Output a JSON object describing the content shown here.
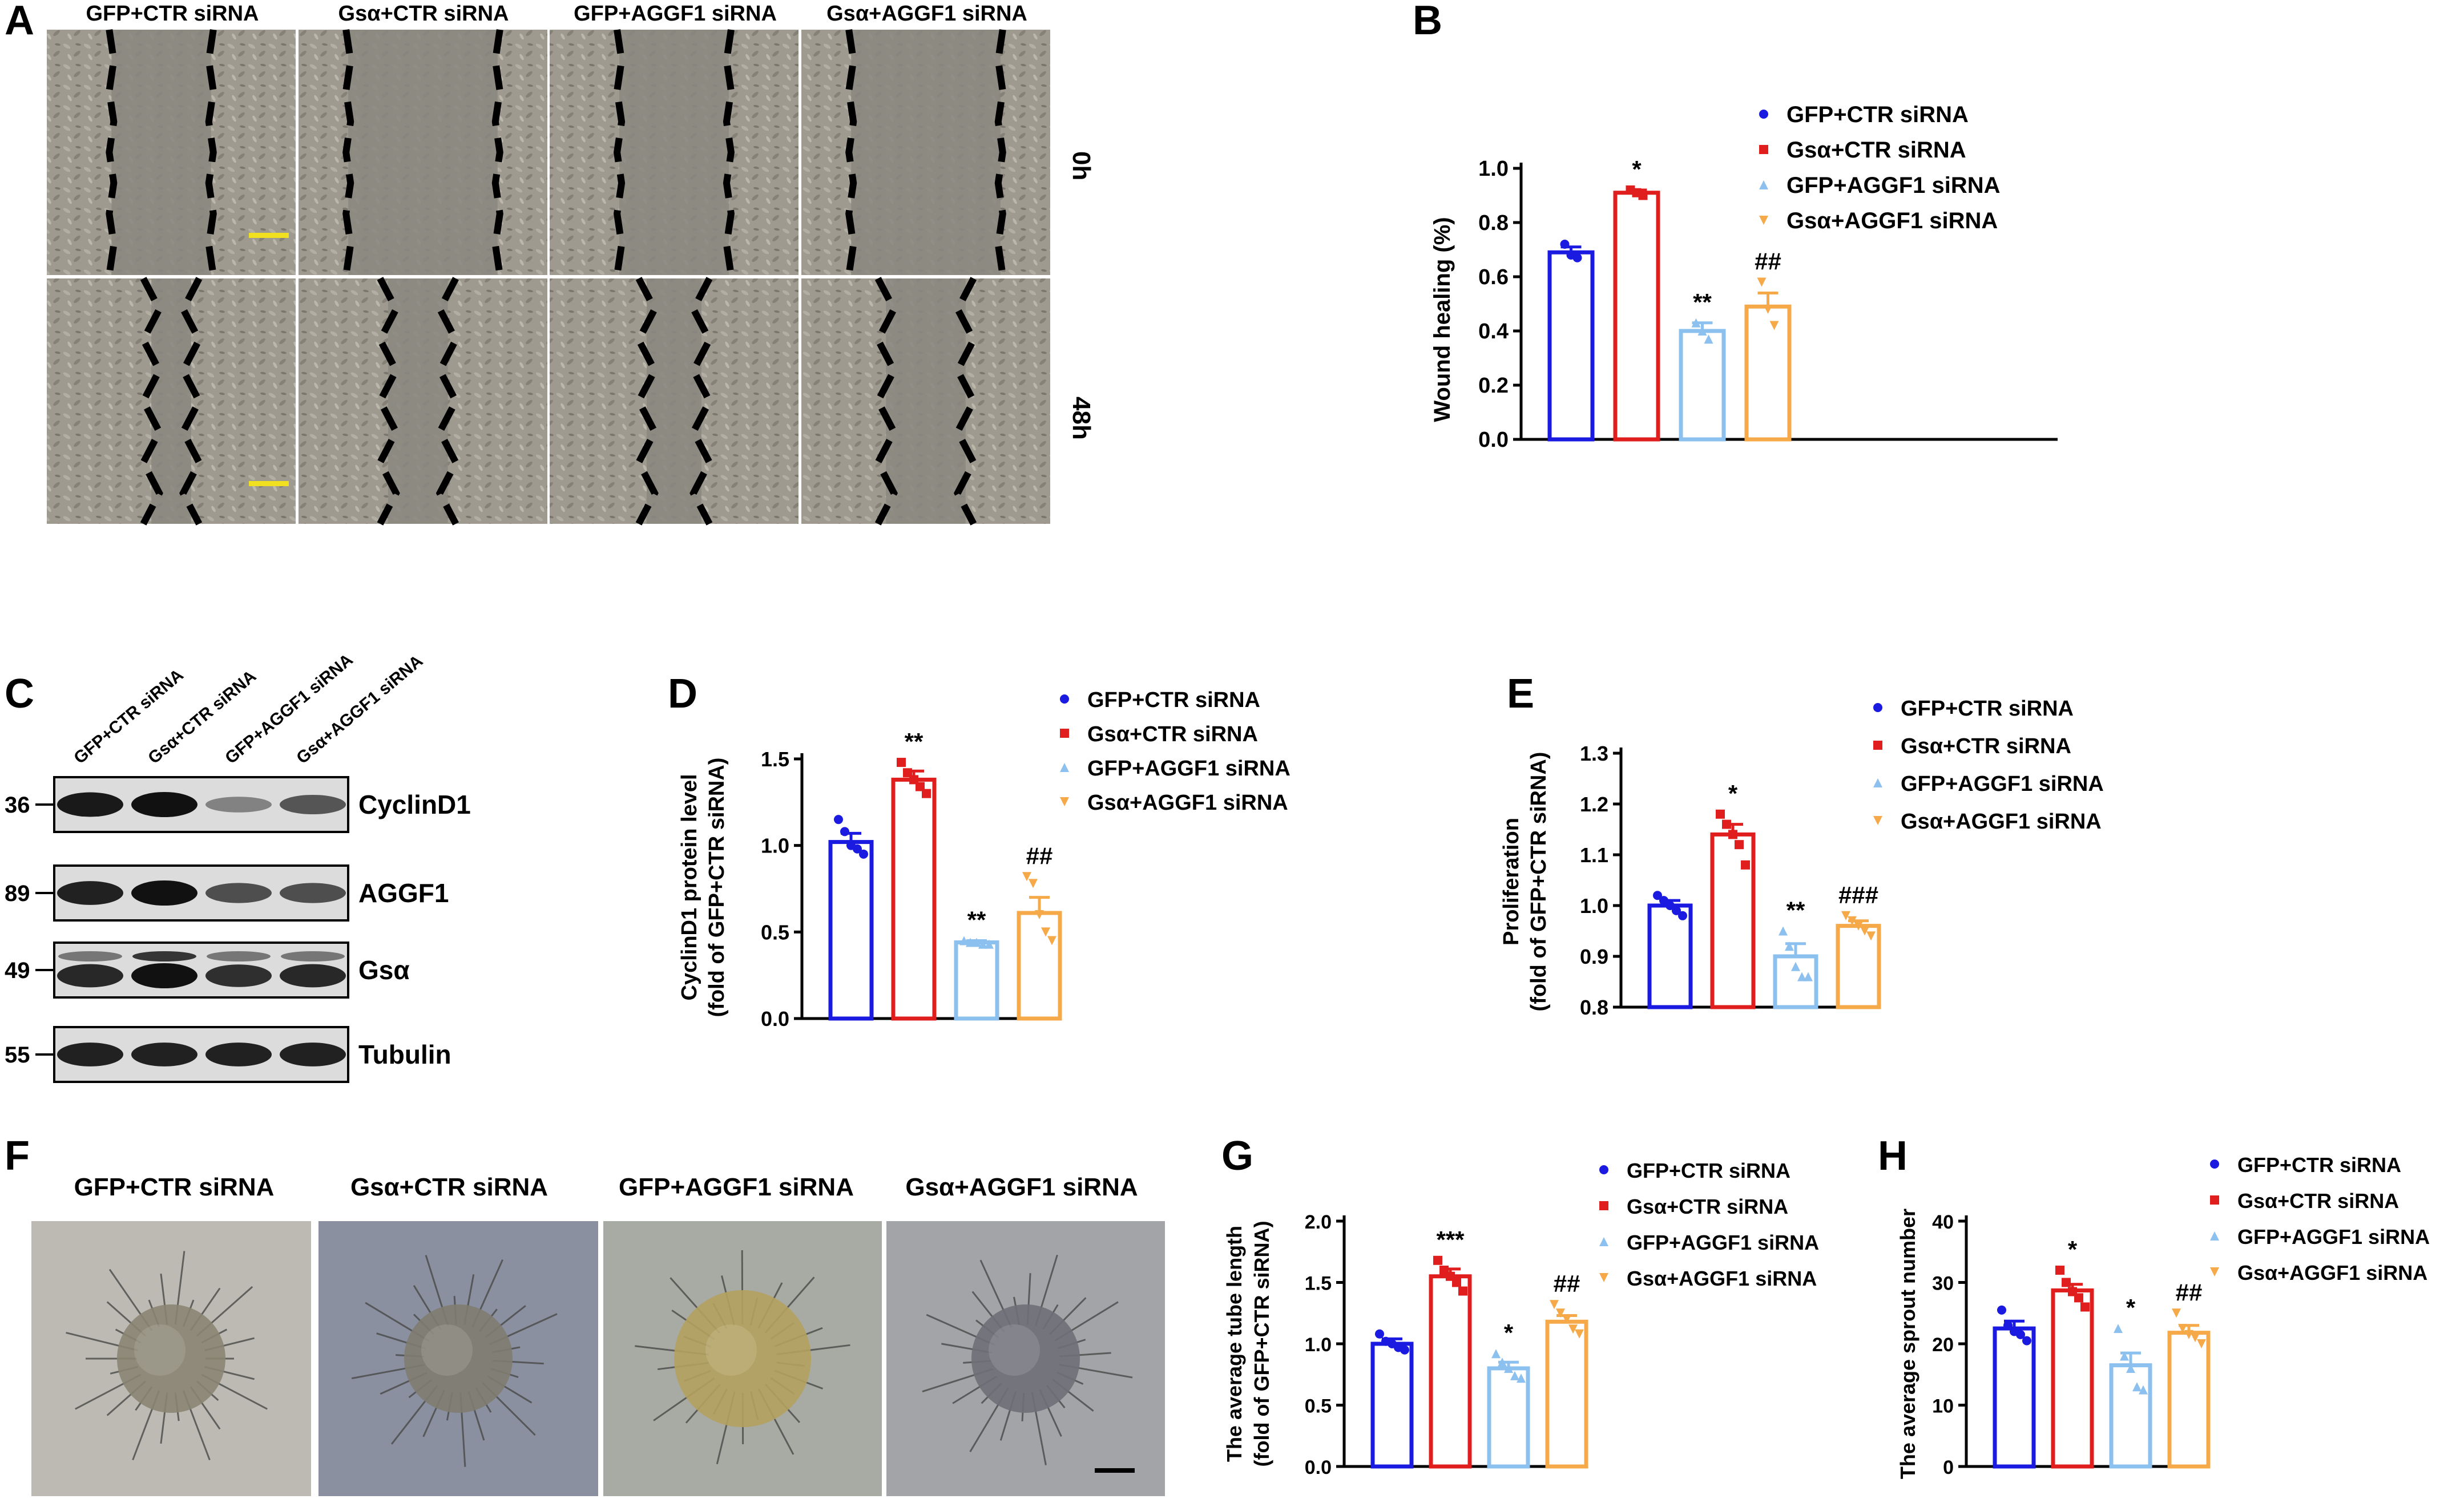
{
  "panel_letters": {
    "A": "A",
    "B": "B",
    "C": "C",
    "D": "D",
    "E": "E",
    "F": "F",
    "G": "G",
    "H": "H"
  },
  "groups": [
    "GFP+CTR siRNA",
    "Gsα+CTR siRNA",
    "GFP+AGGF1 siRNA",
    "Gsα+AGGF1 siRNA"
  ],
  "group_colors": [
    "#1a1ae0",
    "#e01e1e",
    "#8cc0ee",
    "#f5a948"
  ],
  "wound": {
    "headers": [
      "GFP+CTR siRNA",
      "Gsα+CTR siRNA",
      "GFP+AGGF1 siRNA",
      "Gsα+AGGF1 siRNA"
    ],
    "rows": [
      "0h",
      "48h"
    ]
  },
  "western": {
    "lanes": [
      "GFP+CTR siRNA",
      "Gsα+CTR siRNA",
      "GFP+AGGF1 siRNA",
      "Gsα+AGGF1 siRNA"
    ],
    "blots": [
      {
        "marker": "36",
        "label": "CyclinD1",
        "intensity": [
          0.95,
          1.0,
          0.25,
          0.55
        ]
      },
      {
        "marker": "89",
        "label": "AGGF1",
        "intensity": [
          0.9,
          1.0,
          0.6,
          0.6
        ]
      },
      {
        "marker": "49",
        "label": "Gsα",
        "intensity": [
          0.85,
          1.0,
          0.8,
          0.85
        ]
      },
      {
        "marker": "55",
        "label": "Tubulin",
        "intensity": [
          0.9,
          0.9,
          0.9,
          0.9
        ]
      }
    ]
  },
  "spheroid": {
    "headers": [
      "GFP+CTR siRNA",
      "Gsα+CTR siRNA",
      "GFP+AGGF1 siRNA",
      "Gsα+AGGF1 siRNA"
    ]
  },
  "chart_data": [
    {
      "id": "B",
      "type": "bar",
      "categories": [
        "GFP+CTR siRNA",
        "Gsα+CTR siRNA",
        "GFP+AGGF1 siRNA",
        "Gsα+AGGF1 siRNA"
      ],
      "values": [
        0.69,
        0.91,
        0.4,
        0.49
      ],
      "errors": [
        0.02,
        0.01,
        0.03,
        0.05
      ],
      "points": [
        [
          0.72,
          0.68,
          0.67
        ],
        [
          0.92,
          0.91,
          0.9
        ],
        [
          0.43,
          0.4,
          0.37
        ],
        [
          0.58,
          0.48,
          0.42
        ]
      ],
      "annotations": [
        "",
        "*",
        "**",
        "##"
      ],
      "ylabel": "Wound healing (%)",
      "ylim": [
        0,
        1.0
      ],
      "yticks": [
        "0.0",
        "0.2",
        "0.4",
        "0.6",
        "0.8",
        "1.0"
      ],
      "legend": "top-right"
    },
    {
      "id": "D",
      "type": "bar",
      "categories": [
        "GFP+CTR siRNA",
        "Gsα+CTR siRNA",
        "GFP+AGGF1 siRNA",
        "Gsα+AGGF1 siRNA"
      ],
      "values": [
        1.02,
        1.38,
        0.44,
        0.61
      ],
      "errors": [
        0.05,
        0.05,
        0.01,
        0.09
      ],
      "points": [
        [
          1.15,
          1.08,
          1.0,
          0.98,
          0.95
        ],
        [
          1.48,
          1.42,
          1.38,
          1.34,
          1.3
        ],
        [
          0.45,
          0.44,
          0.44,
          0.43,
          0.43
        ],
        [
          0.82,
          0.78,
          0.6,
          0.5,
          0.45
        ]
      ],
      "annotations": [
        "",
        "**",
        "**",
        "##"
      ],
      "ylabel": [
        "CyclinD1 protein level",
        "(fold of GFP+CTR siRNA)"
      ],
      "ylim": [
        0,
        1.5
      ],
      "yticks": [
        "0.0",
        "0.5",
        "1.0",
        "1.5"
      ],
      "legend": "top-right"
    },
    {
      "id": "E",
      "type": "bar",
      "categories": [
        "GFP+CTR siRNA",
        "Gsα+CTR siRNA",
        "GFP+AGGF1 siRNA",
        "Gsα+AGGF1 siRNA"
      ],
      "values": [
        1.0,
        1.14,
        0.9,
        0.96
      ],
      "errors": [
        0.01,
        0.02,
        0.025,
        0.01
      ],
      "points": [
        [
          1.02,
          1.01,
          1.0,
          0.99,
          0.98
        ],
        [
          1.18,
          1.16,
          1.14,
          1.12,
          1.08
        ],
        [
          0.95,
          0.92,
          0.88,
          0.86,
          0.86
        ],
        [
          0.98,
          0.97,
          0.96,
          0.95,
          0.94
        ]
      ],
      "annotations": [
        "",
        "*",
        "**",
        "###"
      ],
      "ylabel": [
        "Proliferation",
        "(fold of GFP+CTR siRNA)"
      ],
      "ylim": [
        0.8,
        1.3
      ],
      "yticks": [
        "0.8",
        "0.9",
        "1.0",
        "1.1",
        "1.2",
        "1.3"
      ],
      "legend": "top-right"
    },
    {
      "id": "G",
      "type": "bar",
      "categories": [
        "GFP+CTR siRNA",
        "Gsα+CTR siRNA",
        "GFP+AGGF1 siRNA",
        "Gsα+AGGF1 siRNA"
      ],
      "values": [
        1.0,
        1.55,
        0.8,
        1.18
      ],
      "errors": [
        0.04,
        0.06,
        0.05,
        0.05
      ],
      "points": [
        [
          1.08,
          1.02,
          1.0,
          0.97,
          0.95
        ],
        [
          1.68,
          1.6,
          1.55,
          1.5,
          1.43
        ],
        [
          0.92,
          0.85,
          0.8,
          0.74,
          0.72
        ],
        [
          1.32,
          1.25,
          1.2,
          1.12,
          1.08
        ]
      ],
      "annotations": [
        "",
        "***",
        "*",
        "##"
      ],
      "ylabel": [
        "The average tube length",
        "(fold of GFP+CTR siRNA)"
      ],
      "ylim": [
        0,
        2.0
      ],
      "yticks": [
        "0.0",
        "0.5",
        "1.0",
        "1.5",
        "2.0"
      ],
      "legend": "top-right"
    },
    {
      "id": "H",
      "type": "bar",
      "categories": [
        "GFP+CTR siRNA",
        "Gsα+CTR siRNA",
        "GFP+AGGF1 siRNA",
        "Gsα+AGGF1 siRNA"
      ],
      "values": [
        22.5,
        28.7,
        16.5,
        21.8
      ],
      "errors": [
        1.2,
        1.0,
        2.0,
        1.2
      ],
      "points": [
        [
          25.5,
          23.0,
          22.0,
          21.5,
          20.5
        ],
        [
          32.0,
          30.0,
          28.5,
          27.5,
          26.0
        ],
        [
          22.5,
          18.0,
          16.0,
          13.0,
          12.5
        ],
        [
          25.0,
          22.5,
          21.5,
          21.0,
          20.0
        ]
      ],
      "annotations": [
        "",
        "*",
        "*",
        "##"
      ],
      "ylabel": "The average sprout number",
      "ylim": [
        0,
        40
      ],
      "yticks": [
        "0",
        "10",
        "20",
        "30",
        "40"
      ],
      "legend": "top-right"
    }
  ]
}
